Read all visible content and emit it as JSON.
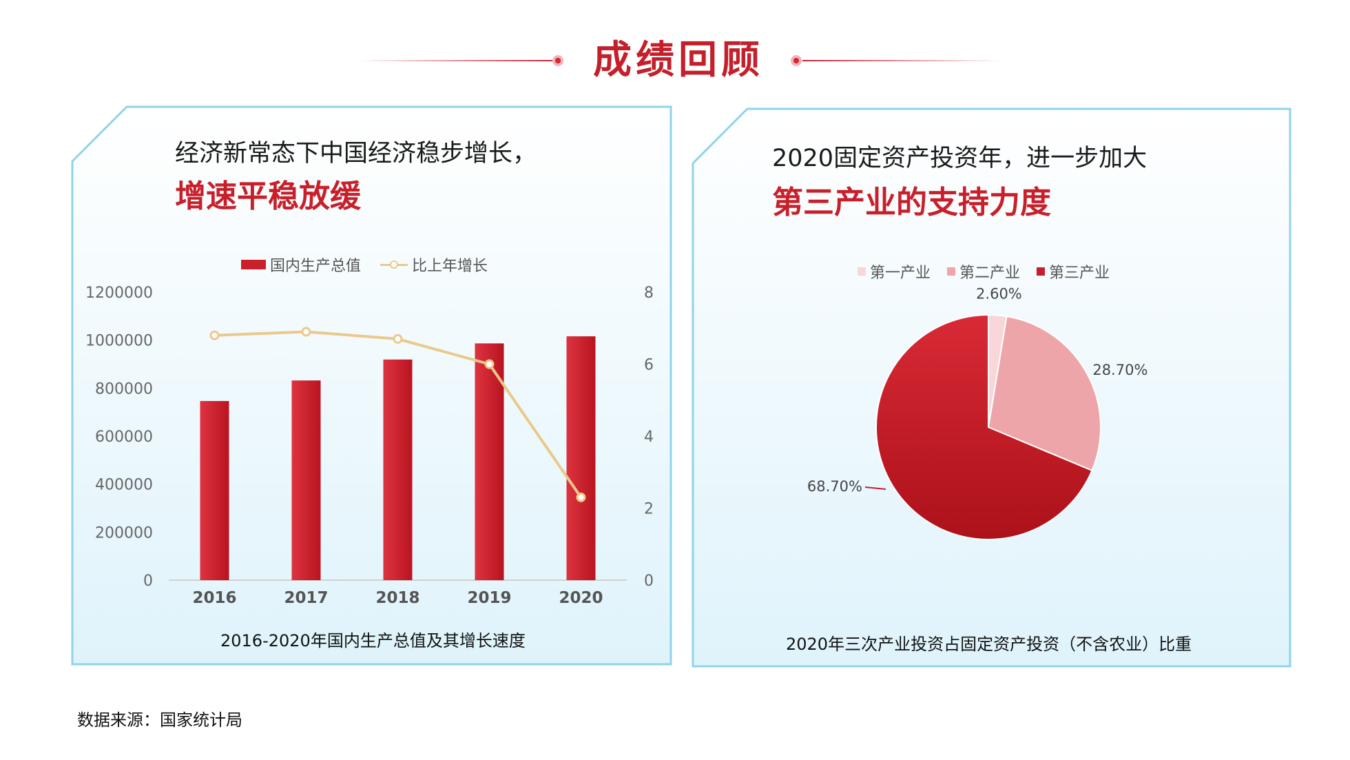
{
  "header": {
    "title": "成绩回顾"
  },
  "left_panel": {
    "title_line1": "经济新常态下中国经济稳步增长，",
    "title_line2": "增速平稳放缓",
    "caption": "2016-2020年国内生产总值及其增长速度"
  },
  "right_panel": {
    "title_line1": "2020固定资产投资年，进一步加大",
    "title_line2": "第三产业的支持力度",
    "caption": "2020年三次产业投资占固定资产投资（不含农业）比重"
  },
  "source": "数据来源：国家统计局",
  "colors": {
    "accent": "#c9202c",
    "line": "#eac98a",
    "pie": [
      "#f8d6d9",
      "#eea5a9",
      "#c41f2a"
    ],
    "frame": "#8fd3ea",
    "panel_bg": "#e8f6fc"
  },
  "chart_data": [
    {
      "type": "bar",
      "categories": [
        "2016",
        "2017",
        "2018",
        "2019",
        "2020"
      ],
      "series": [
        {
          "name": "国内生产总值",
          "type": "bar",
          "axis": "left",
          "values": [
            746395,
            832036,
            919281,
            986515,
            1015986
          ]
        },
        {
          "name": "比上年增长",
          "type": "line",
          "axis": "right",
          "values": [
            6.8,
            6.9,
            6.7,
            6.0,
            2.3
          ]
        }
      ],
      "y_left": {
        "range": [
          0,
          1200000
        ],
        "ticks": [
          "0",
          "200000",
          "400000",
          "600000",
          "800000",
          "1000000",
          "1200000"
        ]
      },
      "y_right": {
        "range": [
          0,
          8
        ],
        "ticks": [
          "0",
          "2",
          "4",
          "6",
          "8"
        ]
      },
      "legend_position": "top",
      "grid": false
    },
    {
      "type": "pie",
      "labels": [
        "第一产业",
        "第二产业",
        "第三产业"
      ],
      "values": [
        2.6,
        28.7,
        68.7
      ],
      "value_labels": [
        "2.60%",
        "28.70%",
        "68.70%"
      ],
      "legend_position": "top"
    }
  ]
}
